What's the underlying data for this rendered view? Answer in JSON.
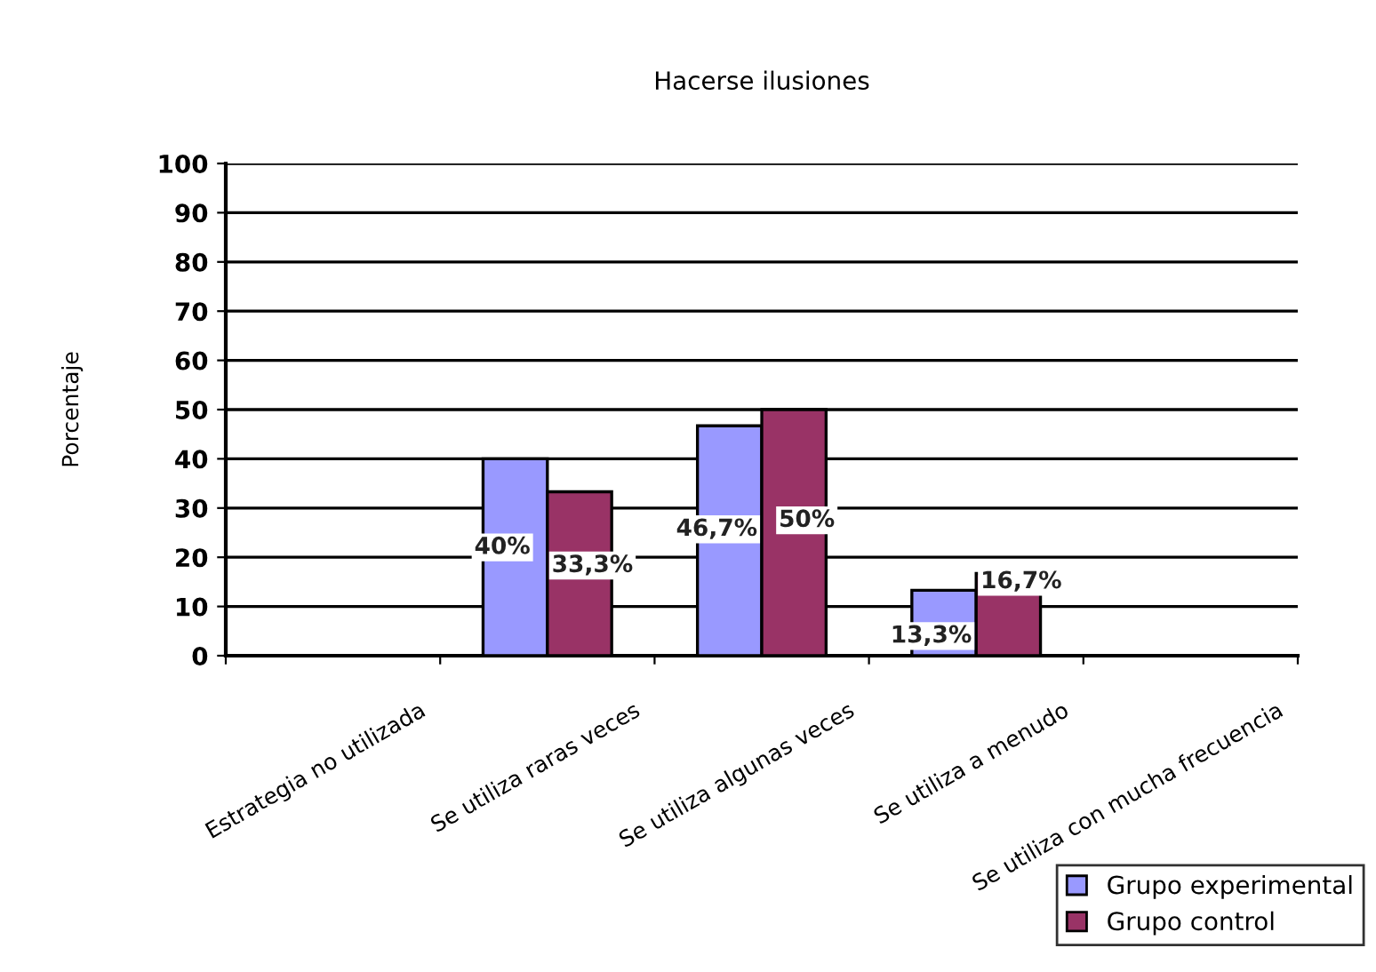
{
  "chart_data": {
    "type": "bar",
    "title": "Hacerse ilusiones",
    "ylabel": "Porcentaje",
    "categories": [
      "Estrategia no utilizada",
      "Se utiliza raras veces",
      "Se utiliza algunas veces",
      "Se utiliza a menudo",
      "Se utiliza con mucha frecuencia"
    ],
    "series": [
      {
        "name": "Grupo experimental",
        "color": "#9999ff",
        "values": [
          null,
          40,
          46.7,
          13.3,
          null
        ],
        "value_labels": [
          null,
          "40%",
          "46,7%",
          "13,3%",
          null
        ]
      },
      {
        "name": "Grupo control",
        "color": "#993366",
        "values": [
          null,
          33.3,
          50,
          16.7,
          null
        ],
        "value_labels": [
          null,
          "33,3%",
          "50%",
          "16,7%",
          null
        ]
      }
    ],
    "ylim": [
      0,
      100
    ],
    "yticks": [
      0,
      10,
      20,
      30,
      40,
      50,
      60,
      70,
      80,
      90,
      100
    ],
    "grid": "y",
    "legend": "bottom right"
  }
}
